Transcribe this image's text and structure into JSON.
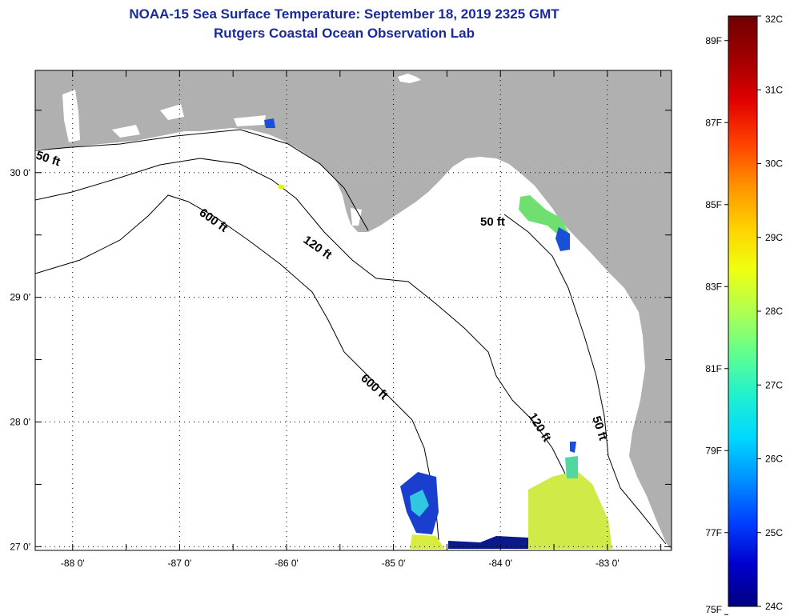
{
  "title": {
    "line1": "NOAA-15 Sea Surface Temperature:  September 18, 2019 2325 GMT",
    "line2": "Rutgers Coastal Ocean Observation Lab"
  },
  "map": {
    "lon_range": [
      -88.35,
      -82.4
    ],
    "lat_range": [
      26.97,
      30.82
    ],
    "land_color": "#b0b0b0",
    "ocean_color": "#ffffff",
    "grid": "dotted",
    "lon_ticks": [
      {
        "value": -88,
        "label": "-88 0'"
      },
      {
        "value": -87,
        "label": "-87 0'"
      },
      {
        "value": -86,
        "label": "-86 0'"
      },
      {
        "value": -85,
        "label": "-85 0'"
      },
      {
        "value": -84,
        "label": "-84 0'"
      },
      {
        "value": -83,
        "label": "-83 0'"
      }
    ],
    "lat_ticks": [
      {
        "value": 30,
        "label": "30 0'"
      },
      {
        "value": 29,
        "label": "29 0'"
      },
      {
        "value": 28,
        "label": "28 0'"
      },
      {
        "value": 27,
        "label": "27 0'"
      }
    ],
    "contour_labels": [
      "50 ft",
      "600 ft",
      "120 ft",
      "50 ft",
      "600 ft",
      "120 ft",
      "50 ft"
    ]
  },
  "colorbar": {
    "colors": [
      "#000080",
      "#0000cd",
      "#0040ff",
      "#0090ff",
      "#00d8ff",
      "#20f0d0",
      "#60ff90",
      "#b0ff50",
      "#f0ff10",
      "#ffd000",
      "#ff9000",
      "#ff4000",
      "#e00000",
      "#a00000",
      "#700000"
    ],
    "celsius": [
      {
        "value": 24,
        "label": "24C"
      },
      {
        "value": 25,
        "label": "25C"
      },
      {
        "value": 26,
        "label": "26C"
      },
      {
        "value": 27,
        "label": "27C"
      },
      {
        "value": 28,
        "label": "28C"
      },
      {
        "value": 29,
        "label": "29C"
      },
      {
        "value": 30,
        "label": "30C"
      },
      {
        "value": 31,
        "label": "31C"
      },
      {
        "value": 32,
        "label": "32C"
      }
    ],
    "fahrenheit": [
      {
        "value": 75,
        "label": "75F"
      },
      {
        "value": 77,
        "label": "77F"
      },
      {
        "value": 79,
        "label": "79F"
      },
      {
        "value": 81,
        "label": "81F"
      },
      {
        "value": 83,
        "label": "83F"
      },
      {
        "value": 85,
        "label": "85F"
      },
      {
        "value": 87,
        "label": "87F"
      },
      {
        "value": 89,
        "label": "89F"
      }
    ]
  }
}
